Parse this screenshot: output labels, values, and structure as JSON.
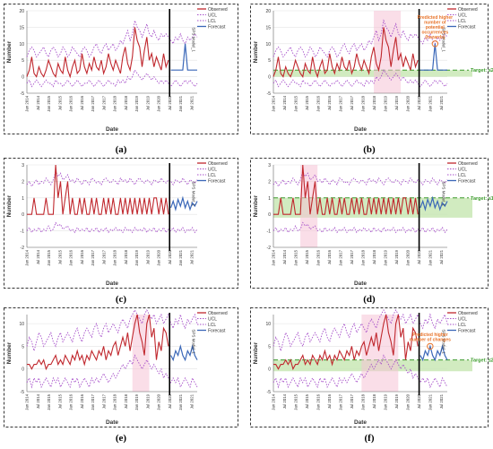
{
  "colors": {
    "observed": "#c0272d",
    "limit": "#a64fc9",
    "forecast": "#3a67b8",
    "target_band": "#c9e8b5",
    "target_line": "#3a9a2a",
    "annotation": "#e8742b",
    "highlight": "#f6c3d6"
  },
  "legend": {
    "observed": "Observed",
    "ucl": "UCL",
    "lcl": "LCL",
    "forecast": "Forecast"
  },
  "common": {
    "xlabel": "Date",
    "ylabel": "Number",
    "forecast_axis_label": "SPS Model_1",
    "date_ticks": [
      "Jan 2014",
      "Apr 2014",
      "Jul 2014",
      "Oct 2014",
      "Jan 2015",
      "Apr 2015",
      "Jul 2015",
      "Oct 2015",
      "Jan 2016",
      "Apr 2016",
      "Jul 2016",
      "Oct 2016",
      "Jan 2017",
      "Apr 2017",
      "Jul 2017",
      "Oct 2017",
      "Jan 2018",
      "Apr 2018",
      "Jul 2018",
      "Oct 2018",
      "Jan 2019",
      "Apr 2019",
      "Jul 2019",
      "Oct 2019",
      "Jan 2020",
      "Apr 2020",
      "Jul 2020",
      "Oct 2020",
      "Jan 2021",
      "Apr 2021",
      "Jul 2021",
      "Oct 2021"
    ]
  },
  "chart_data": [
    {
      "panel_label": "(a)",
      "type": "line",
      "ylim": [
        -5,
        20
      ],
      "yticks": [
        "-5",
        "0",
        "5",
        "10",
        "15",
        "20"
      ],
      "observed": [
        0,
        2,
        6,
        1,
        0,
        3,
        1,
        0,
        2,
        5,
        3,
        1,
        0,
        4,
        2,
        1,
        6,
        2,
        0,
        3,
        5,
        1,
        2,
        7,
        3,
        1,
        4,
        2,
        6,
        3,
        2,
        5,
        1,
        3,
        7,
        4,
        2,
        5,
        3,
        1,
        6,
        9,
        4,
        2,
        6,
        15,
        11,
        9,
        3,
        8,
        12,
        5,
        7,
        3,
        6,
        4,
        2,
        7,
        3,
        5
      ],
      "ucl": [
        6,
        8,
        9,
        8,
        6,
        7,
        8,
        9,
        7,
        6,
        8,
        9,
        8,
        6,
        7,
        9,
        8,
        6,
        7,
        9,
        8,
        7,
        6,
        8,
        9,
        8,
        6,
        7,
        9,
        10,
        8,
        7,
        9,
        10,
        8,
        9,
        10,
        8,
        9,
        11,
        10,
        12,
        14,
        11,
        13,
        17,
        15,
        14,
        12,
        14,
        16,
        13,
        12,
        14,
        12,
        11,
        13,
        12,
        13,
        12,
        11,
        10,
        12,
        11,
        13,
        11,
        10,
        12,
        11,
        12,
        13,
        12
      ],
      "lcl": [
        -2,
        -1,
        -3,
        -2,
        -1,
        -2,
        -3,
        -2,
        -1,
        -2,
        -2,
        -3,
        -1,
        -2,
        -2,
        -3,
        -2,
        -1,
        -2,
        -3,
        -2,
        -1,
        -2,
        -3,
        -2,
        -2,
        -1,
        -2,
        -3,
        -2,
        -1,
        -2,
        -3,
        -2,
        -1,
        -2,
        -2,
        -3,
        -1,
        -2,
        -1,
        -2,
        0,
        -1,
        0,
        2,
        1,
        0,
        -1,
        0,
        1,
        0,
        -1,
        0,
        -1,
        -2,
        -1,
        -2,
        -1,
        -2,
        -3,
        -2,
        -1,
        -2,
        -3,
        -2,
        -1,
        -2,
        -1,
        -2,
        -3,
        -2
      ],
      "forecast": [
        2,
        2,
        2,
        2,
        2,
        2,
        10,
        2,
        2,
        2,
        2,
        2
      ],
      "highlights": [],
      "target": null,
      "annotation": null
    },
    {
      "panel_label": "(b)",
      "type": "line",
      "ylim": [
        -5,
        20
      ],
      "yticks": [
        "-5",
        "0",
        "5",
        "10",
        "15",
        "20"
      ],
      "observed": [
        0,
        2,
        6,
        1,
        0,
        3,
        1,
        0,
        2,
        5,
        3,
        1,
        0,
        4,
        2,
        1,
        6,
        2,
        0,
        3,
        5,
        1,
        2,
        7,
        3,
        1,
        4,
        2,
        6,
        3,
        2,
        5,
        1,
        3,
        7,
        4,
        2,
        5,
        3,
        1,
        6,
        9,
        4,
        2,
        6,
        15,
        11,
        9,
        3,
        8,
        12,
        5,
        7,
        3,
        6,
        4,
        2,
        7,
        3,
        5
      ],
      "ucl": [
        6,
        8,
        9,
        8,
        6,
        7,
        8,
        9,
        7,
        6,
        8,
        9,
        8,
        6,
        7,
        9,
        8,
        6,
        7,
        9,
        8,
        7,
        6,
        8,
        9,
        8,
        6,
        7,
        9,
        10,
        8,
        7,
        9,
        10,
        8,
        9,
        10,
        8,
        9,
        11,
        10,
        12,
        14,
        11,
        13,
        17,
        15,
        14,
        12,
        14,
        16,
        13,
        12,
        14,
        12,
        11,
        13,
        12,
        13,
        12,
        11,
        10,
        12,
        11,
        13,
        11,
        10,
        12,
        11,
        12,
        13,
        12
      ],
      "lcl": [
        -2,
        -1,
        -3,
        -2,
        -1,
        -2,
        -3,
        -2,
        -1,
        -2,
        -2,
        -3,
        -1,
        -2,
        -2,
        -3,
        -2,
        -1,
        -2,
        -3,
        -2,
        -1,
        -2,
        -3,
        -2,
        -2,
        -1,
        -2,
        -3,
        -2,
        -1,
        -2,
        -3,
        -2,
        -1,
        -2,
        -2,
        -3,
        -1,
        -2,
        -1,
        -2,
        0,
        -1,
        0,
        2,
        1,
        0,
        -1,
        0,
        1,
        0,
        -1,
        0,
        -1,
        -2,
        -1,
        -2,
        -1,
        -2,
        -3,
        -2,
        -1,
        -2,
        -3,
        -2,
        -1,
        -2,
        -1,
        -2,
        -3,
        -2
      ],
      "forecast": [
        2,
        2,
        2,
        2,
        2,
        2,
        10,
        2,
        2,
        2,
        2,
        2
      ],
      "highlights": [
        [
          41,
          52
        ]
      ],
      "target": {
        "label": "Target: ≤2",
        "band": [
          0,
          2
        ]
      },
      "annotation": {
        "text": "Predicted higher number of potential occurrences (hazards)",
        "at": 66
      }
    },
    {
      "panel_label": "(c)",
      "type": "line",
      "ylim": [
        -2,
        3
      ],
      "yticks": [
        "-2",
        "-1",
        "0",
        "1",
        "2",
        "3"
      ],
      "observed": [
        0,
        0,
        0,
        1,
        0,
        0,
        0,
        0,
        1,
        0,
        0,
        0,
        3,
        1,
        2,
        0,
        1,
        2,
        0,
        1,
        0,
        0,
        1,
        0,
        1,
        0,
        0,
        1,
        0,
        1,
        0,
        0,
        1,
        0,
        1,
        0,
        1,
        0,
        0,
        1,
        0,
        1,
        0,
        1,
        0,
        1,
        0,
        1,
        0,
        1,
        0,
        1,
        0,
        1,
        1,
        0,
        1,
        0,
        1,
        0
      ],
      "ucl": [
        1.8,
        2,
        1.7,
        1.9,
        2.1,
        1.8,
        2,
        1.9,
        2.2,
        2,
        1.8,
        2.1,
        2.6,
        2.3,
        2.5,
        2.1,
        2.2,
        2.4,
        2,
        2.1,
        1.9,
        2.2,
        2,
        1.8,
        2.1,
        2,
        1.8,
        2.2,
        2.1,
        1.9,
        2,
        1.8,
        2.1,
        2.2,
        2,
        1.9,
        2.1,
        2,
        1.8,
        2.2,
        2,
        2.1,
        1.9,
        2.2,
        2,
        1.8,
        2.1,
        2.2,
        2,
        1.9,
        2.1,
        2,
        1.8,
        2.1,
        2,
        1.9,
        2.2,
        2,
        1.9,
        2.1,
        2,
        1.8,
        2.1,
        2,
        1.9,
        2.2,
        2,
        1.8,
        2.1,
        2,
        1.9,
        2.1
      ],
      "lcl": [
        -1,
        -0.8,
        -1.1,
        -0.9,
        -1,
        -0.8,
        -1.1,
        -0.9,
        -1,
        -0.7,
        -1,
        -0.9,
        -0.5,
        -0.7,
        -0.6,
        -0.9,
        -0.8,
        -0.7,
        -1,
        -0.9,
        -1.1,
        -0.8,
        -1,
        -0.9,
        -1,
        -0.8,
        -1.1,
        -0.9,
        -1,
        -0.8,
        -1.1,
        -0.9,
        -1,
        -0.8,
        -1.1,
        -0.9,
        -1,
        -0.8,
        -1,
        -0.9,
        -1.1,
        -0.8,
        -1,
        -0.9,
        -1.1,
        -0.8,
        -1,
        -0.9,
        -1,
        -0.8,
        -1.1,
        -0.9,
        -1,
        -0.8,
        -1.1,
        -0.9,
        -1,
        -0.8,
        -1.1,
        -0.9,
        -1,
        -0.8,
        -1.1,
        -0.9,
        -1,
        -0.8,
        -1.1,
        -0.9,
        -1,
        -0.8,
        -1.1,
        -0.9
      ],
      "forecast": [
        0.4,
        0.8,
        0.3,
        0.9,
        0.5,
        1,
        0.4,
        0.8,
        0.3,
        0.7,
        0.5,
        0.8
      ],
      "highlights": [],
      "target": null,
      "annotation": null
    },
    {
      "panel_label": "(d)",
      "type": "line",
      "ylim": [
        -2,
        3
      ],
      "yticks": [
        "-2",
        "-1",
        "0",
        "1",
        "2",
        "3"
      ],
      "observed": [
        0,
        0,
        0,
        1,
        0,
        0,
        0,
        0,
        1,
        0,
        0,
        0,
        3,
        1,
        2,
        0,
        1,
        2,
        0,
        1,
        0,
        0,
        1,
        0,
        1,
        0,
        0,
        1,
        0,
        1,
        0,
        0,
        1,
        0,
        1,
        0,
        1,
        0,
        0,
        1,
        0,
        1,
        0,
        1,
        0,
        1,
        0,
        1,
        0,
        1,
        0,
        1,
        0,
        1,
        1,
        0,
        1,
        0,
        1,
        0
      ],
      "ucl": [
        1.8,
        2,
        1.7,
        1.9,
        2.1,
        1.8,
        2,
        1.9,
        2.2,
        2,
        1.8,
        2.1,
        2.6,
        2.3,
        2.5,
        2.1,
        2.2,
        2.4,
        2,
        2.1,
        1.9,
        2.2,
        2,
        1.8,
        2.1,
        2,
        1.8,
        2.2,
        2.1,
        1.9,
        2,
        1.8,
        2.1,
        2.2,
        2,
        1.9,
        2.1,
        2,
        1.8,
        2.2,
        2,
        2.1,
        1.9,
        2.2,
        2,
        1.8,
        2.1,
        2.2,
        2,
        1.9,
        2.1,
        2,
        1.8,
        2.1,
        2,
        1.9,
        2.2,
        2,
        1.9,
        2.1,
        2,
        1.8,
        2.1,
        2,
        1.9,
        2.2,
        2,
        1.8,
        2.1,
        2,
        1.9,
        2.1
      ],
      "lcl": [
        -1,
        -0.8,
        -1.1,
        -0.9,
        -1,
        -0.8,
        -1.1,
        -0.9,
        -1,
        -0.7,
        -1,
        -0.9,
        -0.5,
        -0.7,
        -0.6,
        -0.9,
        -0.8,
        -0.7,
        -1,
        -0.9,
        -1.1,
        -0.8,
        -1,
        -0.9,
        -1,
        -0.8,
        -1.1,
        -0.9,
        -1,
        -0.8,
        -1.1,
        -0.9,
        -1,
        -0.8,
        -1.1,
        -0.9,
        -1,
        -0.8,
        -1,
        -0.9,
        -1.1,
        -0.8,
        -1,
        -0.9,
        -1.1,
        -0.8,
        -1,
        -0.9,
        -1,
        -0.8,
        -1.1,
        -0.9,
        -1,
        -0.8,
        -1.1,
        -0.9,
        -1,
        -0.8,
        -1.1,
        -0.9,
        -1,
        -0.8,
        -1.1,
        -0.9,
        -1,
        -0.8,
        -1.1,
        -0.9,
        -1,
        -0.8,
        -1.1,
        -0.9
      ],
      "forecast": [
        0.4,
        0.8,
        0.3,
        0.9,
        0.5,
        1,
        0.4,
        0.8,
        0.3,
        0.7,
        0.5,
        0.8
      ],
      "highlights": [
        [
          11,
          18
        ]
      ],
      "target": {
        "label": "Target: ≤1",
        "band": [
          -0.2,
          1
        ]
      },
      "annotation": null
    },
    {
      "panel_label": "(e)",
      "type": "line",
      "ylim": [
        -5,
        12
      ],
      "yticks": [
        "-5",
        "0",
        "5",
        "10"
      ],
      "observed": [
        1,
        1,
        0,
        1,
        1,
        2,
        1,
        2,
        0,
        1,
        1,
        2,
        3,
        1,
        2,
        1,
        3,
        2,
        1,
        3,
        2,
        4,
        2,
        3,
        1,
        3,
        2,
        4,
        3,
        2,
        4,
        3,
        5,
        2,
        4,
        3,
        5,
        6,
        3,
        5,
        7,
        5,
        8,
        4,
        7,
        10,
        12,
        8,
        6,
        3,
        10,
        12,
        7,
        9,
        2,
        6,
        4,
        9,
        8,
        5
      ],
      "ucl": [
        5,
        7,
        6,
        4,
        6,
        8,
        7,
        5,
        6,
        7,
        8,
        6,
        5,
        7,
        8,
        6,
        7,
        8,
        7,
        6,
        8,
        9,
        7,
        6,
        8,
        9,
        8,
        7,
        9,
        10,
        8,
        7,
        9,
        10,
        8,
        9,
        10,
        9,
        8,
        10,
        11,
        10,
        9,
        11,
        12,
        13,
        12,
        11,
        10,
        12,
        13,
        12,
        11,
        12,
        10,
        11,
        12,
        10,
        11,
        12,
        10,
        9,
        11,
        10,
        12,
        10,
        9,
        11,
        10,
        11,
        12,
        10
      ],
      "lcl": [
        -3,
        -2,
        -4,
        -2,
        -3,
        -2,
        -4,
        -3,
        -2,
        -3,
        -4,
        -2,
        -3,
        -2,
        -4,
        -3,
        -2,
        -3,
        -4,
        -2,
        -3,
        -2,
        -4,
        -3,
        -2,
        -3,
        -4,
        -2,
        -3,
        -2,
        -3,
        -2,
        -1,
        -2,
        -3,
        -2,
        -1,
        -2,
        -1,
        0,
        1,
        0,
        1,
        2,
        1,
        3,
        2,
        1,
        0,
        1,
        2,
        1,
        0,
        1,
        0,
        -1,
        0,
        -2,
        -1,
        -2,
        -3,
        -2,
        -3,
        -2,
        -4,
        -3,
        -2,
        -3,
        -4,
        -2,
        -3,
        -4
      ],
      "forecast": [
        3,
        2,
        4,
        3,
        5,
        3,
        2,
        4,
        3,
        5,
        3,
        2
      ],
      "highlights": [
        [
          44,
          51
        ]
      ],
      "target": null,
      "annotation": null
    },
    {
      "panel_label": "(f)",
      "type": "line",
      "ylim": [
        -5,
        12
      ],
      "yticks": [
        "-5",
        "0",
        "5",
        "10"
      ],
      "observed": [
        1,
        1,
        0,
        1,
        1,
        2,
        1,
        2,
        0,
        1,
        1,
        2,
        3,
        1,
        2,
        1,
        3,
        2,
        1,
        3,
        2,
        4,
        2,
        3,
        1,
        3,
        2,
        4,
        3,
        2,
        4,
        3,
        5,
        2,
        4,
        3,
        5,
        6,
        3,
        5,
        7,
        5,
        8,
        4,
        7,
        10,
        12,
        8,
        6,
        3,
        10,
        12,
        7,
        9,
        2,
        6,
        4,
        9,
        8,
        5
      ],
      "ucl": [
        5,
        7,
        6,
        4,
        6,
        8,
        7,
        5,
        6,
        7,
        8,
        6,
        5,
        7,
        8,
        6,
        7,
        8,
        7,
        6,
        8,
        9,
        7,
        6,
        8,
        9,
        8,
        7,
        9,
        10,
        8,
        7,
        9,
        10,
        8,
        9,
        10,
        9,
        8,
        10,
        11,
        10,
        9,
        11,
        12,
        13,
        12,
        11,
        10,
        12,
        13,
        12,
        11,
        12,
        10,
        11,
        12,
        10,
        11,
        12,
        10,
        9,
        11,
        10,
        12,
        10,
        9,
        11,
        10,
        11,
        12,
        10
      ],
      "lcl": [
        -3,
        -2,
        -4,
        -2,
        -3,
        -2,
        -4,
        -3,
        -2,
        -3,
        -4,
        -2,
        -3,
        -2,
        -4,
        -3,
        -2,
        -3,
        -4,
        -2,
        -3,
        -2,
        -4,
        -3,
        -2,
        -3,
        -4,
        -2,
        -3,
        -2,
        -3,
        -2,
        -1,
        -2,
        -3,
        -2,
        -1,
        -2,
        -1,
        0,
        1,
        0,
        1,
        2,
        1,
        3,
        2,
        1,
        0,
        1,
        2,
        1,
        0,
        1,
        0,
        -1,
        0,
        -2,
        -1,
        -2,
        -3,
        -2,
        -3,
        -2,
        -4,
        -3,
        -2,
        -3,
        -4,
        -2,
        -3,
        -4
      ],
      "forecast": [
        3,
        2,
        4,
        3,
        5,
        3,
        2,
        4,
        3,
        5,
        3,
        2
      ],
      "highlights": [
        [
          36,
          51
        ]
      ],
      "target": {
        "label": "Target: ≤2",
        "band": [
          -0.5,
          2
        ]
      },
      "annotation": {
        "text": "Predicted higher number of changes",
        "at": 64
      }
    }
  ]
}
